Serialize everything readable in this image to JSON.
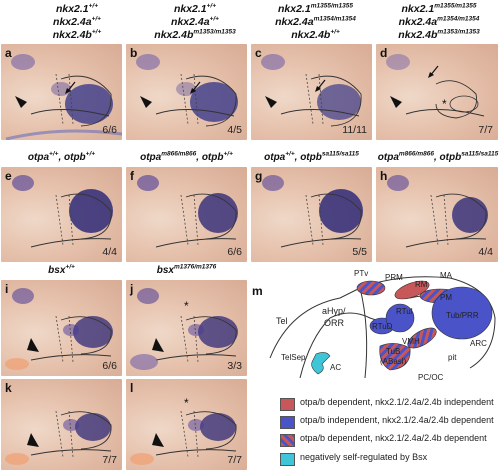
{
  "row1_headers": [
    {
      "line1": "nkx2.1",
      "sup1": "+/+",
      "line2": "nkx2.4a",
      "sup2": "+/+",
      "line3": "nkx2.4b",
      "sup3": "+/+"
    },
    {
      "line1": "nkx2.1",
      "sup1": "+/+",
      "line2": "nkx2.4a",
      "sup2": "+/+",
      "line3": "nkx2.4b",
      "sup3": "m1353/m1353"
    },
    {
      "line1": "nkx2.1",
      "sup1": "m1355/m1355",
      "line2": "nkx2.4a",
      "sup2": "m1354/m1354",
      "line3": "nkx2.4b",
      "sup3": "+/+"
    },
    {
      "line1": "nkx2.1",
      "sup1": "m1355/m1355",
      "line2": "nkx2.4a",
      "sup2": "m1354/m1354",
      "line3": "nkx2.4b",
      "sup3": "m1353/m1353"
    }
  ],
  "row2_headers": [
    {
      "a": "otpa",
      "asup": "+/+",
      "b": "otpb",
      "bsup": "+/+"
    },
    {
      "a": "otpa",
      "asup": "m866/m866",
      "b": "otpb",
      "bsup": "+/+"
    },
    {
      "a": "otpa",
      "asup": "+/+",
      "b": "otpb",
      "bsup": "sa115/sa115"
    },
    {
      "a": "otpa",
      "asup": "m866/m866",
      "b": "otpb",
      "bsup": "sa115/sa115"
    }
  ],
  "row3_headers": [
    {
      "a": "bsx",
      "asup": "+/+"
    },
    {
      "a": "bsx",
      "asup": "m1376/m1376"
    }
  ],
  "panels": {
    "a": {
      "label": "a",
      "count": "6/6"
    },
    "b": {
      "label": "b",
      "count": "4/5"
    },
    "c": {
      "label": "c",
      "count": "11/11"
    },
    "d": {
      "label": "d",
      "count": "7/7"
    },
    "e": {
      "label": "e",
      "count": "4/4"
    },
    "f": {
      "label": "f",
      "count": "6/6"
    },
    "g": {
      "label": "g",
      "count": "5/5"
    },
    "h": {
      "label": "h",
      "count": "4/4"
    },
    "i": {
      "label": "i",
      "count": "6/6"
    },
    "j": {
      "label": "j",
      "count": "3/3"
    },
    "k": {
      "label": "k",
      "count": "7/7"
    },
    "l": {
      "label": "l",
      "count": "7/7"
    }
  },
  "schematic": {
    "label": "m",
    "regions": {
      "ptv": "PTv",
      "prm": "PRM",
      "ma": "MA",
      "rm": "RM",
      "pm": "PM",
      "tel": "Tel",
      "ahyp": "aHyp/",
      "orr": "ORR",
      "rtud": "RTuD",
      "rtul": "RTuI",
      "tubprr": "Tub/PRR",
      "vmh": "VMH",
      "arc": "ARC",
      "tub": "TuB",
      "abasi": "(ABasl)",
      "telsep": "TelSep",
      "ac": "AC",
      "pit": "pit",
      "pcoc": "PC/OC"
    }
  },
  "legend": [
    {
      "color": "#c8575a",
      "text": "otpa/b dependent, nkx2.1/2.4a/2.4b independent"
    },
    {
      "color": "#4a54c8",
      "text": "otpa/b independent, nkx2.1/2.4a/2.4b dependent"
    },
    {
      "color": "striped",
      "text": "otpa/b dependent, nkx2.1/2.4a/2.4b dependent"
    },
    {
      "color": "#3ec6d8",
      "text": "negatively self-regulated by Bsx"
    }
  ]
}
